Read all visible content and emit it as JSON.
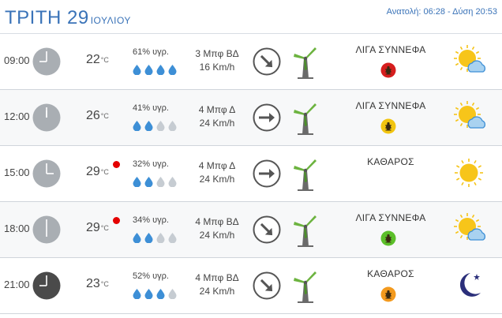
{
  "header": {
    "day": "ΤΡΙΤΗ 29",
    "month": "ΙΟΥΛΙΟΥ",
    "sun_info": "Ανατολή: 06:28 - Δύση 20:53"
  },
  "temp_unit": "°C",
  "rows": [
    {
      "time": "09:00",
      "hour": 9,
      "night": false,
      "temp": "22",
      "hot": false,
      "humidity": "61% υγρ.",
      "drops_filled": 4,
      "wind_beaufort": "3 Μπφ ΒΔ",
      "wind_kmh": "16 Km/h",
      "wind_dir": "north-west",
      "wind_arrow": "south-east",
      "condition": "ΛΙΓΑ ΣΥΝΝΕΦΑ",
      "badge": "red-bug",
      "badge_color": "#d61e1e",
      "icon": "partly-cloudy-icon"
    },
    {
      "time": "12:00",
      "hour": 12,
      "night": false,
      "temp": "26",
      "hot": false,
      "humidity": "41% υγρ.",
      "drops_filled": 2,
      "wind_beaufort": "4 Μπφ Δ",
      "wind_kmh": "24 Km/h",
      "wind_dir": "west",
      "wind_arrow": "east",
      "condition": "ΛΙΓΑ ΣΥΝΝΕΦΑ",
      "badge": "yellow-bug",
      "badge_color": "#f2c511",
      "icon": "partly-cloudy-icon"
    },
    {
      "time": "15:00",
      "hour": 15,
      "night": false,
      "temp": "29",
      "hot": true,
      "humidity": "32% υγρ.",
      "drops_filled": 2,
      "wind_beaufort": "4 Μπφ Δ",
      "wind_kmh": "24 Km/h",
      "wind_dir": "west",
      "wind_arrow": "east",
      "condition": "ΚΑΘΑΡΟΣ",
      "badge": "",
      "badge_color": "",
      "icon": "sun-icon"
    },
    {
      "time": "18:00",
      "hour": 18,
      "night": false,
      "temp": "29",
      "hot": true,
      "humidity": "34% υγρ.",
      "drops_filled": 2,
      "wind_beaufort": "4 Μπφ ΒΔ",
      "wind_kmh": "24 Km/h",
      "wind_dir": "north-west",
      "wind_arrow": "south-east",
      "condition": "ΛΙΓΑ ΣΥΝΝΕΦΑ",
      "badge": "green-bug",
      "badge_color": "#5cbf2a",
      "icon": "partly-cloudy-icon"
    },
    {
      "time": "21:00",
      "hour": 21,
      "night": true,
      "temp": "23",
      "hot": false,
      "humidity": "52% υγρ.",
      "drops_filled": 3,
      "wind_beaufort": "4 Μπφ ΒΔ",
      "wind_kmh": "24 Km/h",
      "wind_dir": "north-west",
      "wind_arrow": "south-east",
      "condition": "ΚΑΘΑΡΟΣ",
      "badge": "orange-bug",
      "badge_color": "#f39a1e",
      "icon": "moon-icon"
    }
  ],
  "colors": {
    "accent": "#3a73b8",
    "drop_filled": "#3d8fd6",
    "drop_empty": "#c6ccd2",
    "clock_day": "#a9aeb3",
    "clock_night": "#4a4a4a",
    "hot_dot": "#e40000"
  }
}
